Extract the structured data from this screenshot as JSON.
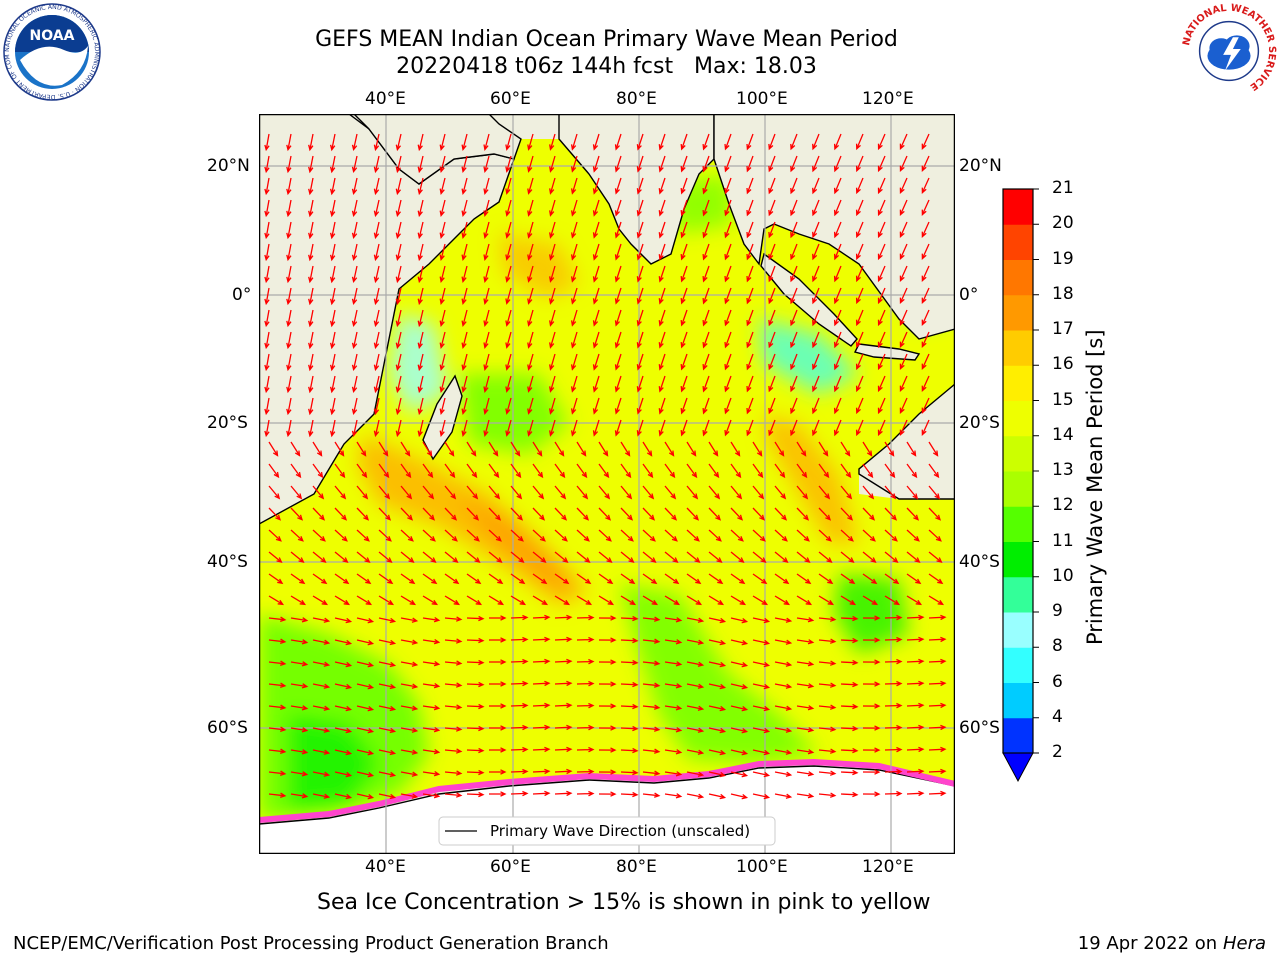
{
  "title_line1": "GEFS MEAN Indian Ocean Primary Wave Mean Period",
  "title_line2": "20220418 t06z 144h fcst   Max: 18.03",
  "lon_ticks": [
    "40°E",
    "60°E",
    "80°E",
    "100°E",
    "120°E"
  ],
  "lat_ticks": [
    "20°N",
    "0°",
    "20°S",
    "40°S",
    "60°S"
  ],
  "legend_label": "Primary Wave Direction (unscaled)",
  "colorbar": {
    "label": "Primary Wave Mean Period [s]",
    "ticks": [
      "2",
      "4",
      "6",
      "8",
      "9",
      "10",
      "11",
      "12",
      "13",
      "14",
      "15",
      "16",
      "17",
      "18",
      "19",
      "20",
      "21"
    ],
    "colors": [
      "#0033ff",
      "#00ccff",
      "#33ffff",
      "#99ffff",
      "#33ff99",
      "#00ee00",
      "#55ff00",
      "#aaff00",
      "#ccff00",
      "#eeff00",
      "#ffee00",
      "#ffcc00",
      "#ff9900",
      "#ff7700",
      "#ff4400",
      "#ff0000"
    ],
    "underflow_color": "#0000ff"
  },
  "ice_note": "Sea Ice Concentration > 15% is shown in pink to yellow",
  "credit_left": "NCEP/EMC/Verification Post Processing Product Generation Branch",
  "credit_right_date": "19 Apr 2022 on ",
  "credit_right_host": "Hera",
  "logos": {
    "noaa_text": "NOAA",
    "noaa_ring": "NATIONAL OCEANIC AND ATMOSPHERIC ADMINISTRATION · U.S. DEPARTMENT OF COMMERCE ·",
    "nws_ring": "NATIONAL WEATHER SERVICE"
  },
  "colors": {
    "land": "#efefdf",
    "ocean_base": "#eeff00",
    "arrow": "#ff0000",
    "ice": "#ff44cc",
    "antarctica": "#ffffff"
  }
}
